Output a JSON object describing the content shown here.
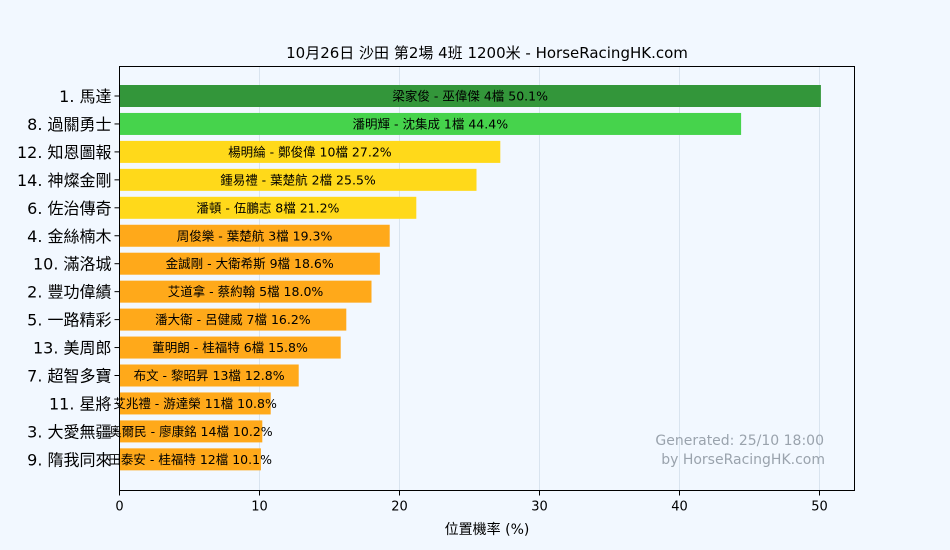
{
  "chart_data": {
    "type": "bar",
    "orientation": "horizontal",
    "title": "10月26日  沙田  第2場  4班  1200米 - HorseRacingHK.com",
    "xlabel": "位置機率 (%)",
    "ylabel": "",
    "xlim": [
      0,
      52.5
    ],
    "xticks": [
      "0",
      "10",
      "20",
      "30",
      "40",
      "50"
    ],
    "grid": "vertical",
    "categories": [
      "1. 馬達",
      "8. 過關勇士",
      "12. 知恩圖報",
      "14. 神燦金剛",
      "6. 佐治傳奇",
      "4. 金絲楠木",
      "10. 滿洛城",
      "2. 豐功偉績",
      "5. 一路精彩",
      "13. 美周郎",
      "7. 超智多寶",
      "11. 星將",
      "3. 大愛無疆",
      "9. 隋我同來"
    ],
    "values": [
      50.1,
      44.4,
      27.2,
      25.5,
      21.2,
      19.3,
      18.6,
      18.0,
      16.2,
      15.8,
      12.8,
      10.8,
      10.2,
      10.1
    ],
    "bar_labels": [
      "梁家俊 - 巫偉傑 4檔  50.1%",
      "潘明輝 - 沈集成 1檔  44.4%",
      "楊明綸 - 鄭俊偉 10檔  27.2%",
      "鍾易禮 - 葉楚航 2檔  25.5%",
      "潘頓 - 伍鵬志 8檔  21.2%",
      "周俊樂 - 葉楚航 3檔  19.3%",
      "金誠剛 - 大衛希斯 9檔  18.6%",
      "艾道拿 - 蔡約翰 5檔  18.0%",
      "潘大衛 - 呂健威 7檔  16.2%",
      "董明朗 - 桂福特 6檔  15.8%",
      "布文 - 黎昭昇 13檔  12.8%",
      "艾兆禮 - 游達榮 11檔  10.8%",
      "奧爾民 - 廖康銘 14檔  10.2%",
      "田泰安 - 桂福特 12檔  10.1%"
    ],
    "bar_colors": [
      "#33963a",
      "#46d34c",
      "#ffd91a",
      "#ffd91a",
      "#ffd91a",
      "#ffa91a",
      "#ffa91a",
      "#ffa91a",
      "#ffa91a",
      "#ffa91a",
      "#ffa91a",
      "#ffa91a",
      "#ffa91a",
      "#ffa91a"
    ]
  },
  "watermark": {
    "line1": "Generated: 25/10 18:00",
    "line2": "by HorseRacingHK.com"
  },
  "colors": {
    "background": "#f2f8ff",
    "grid": "#d9e4ef"
  }
}
